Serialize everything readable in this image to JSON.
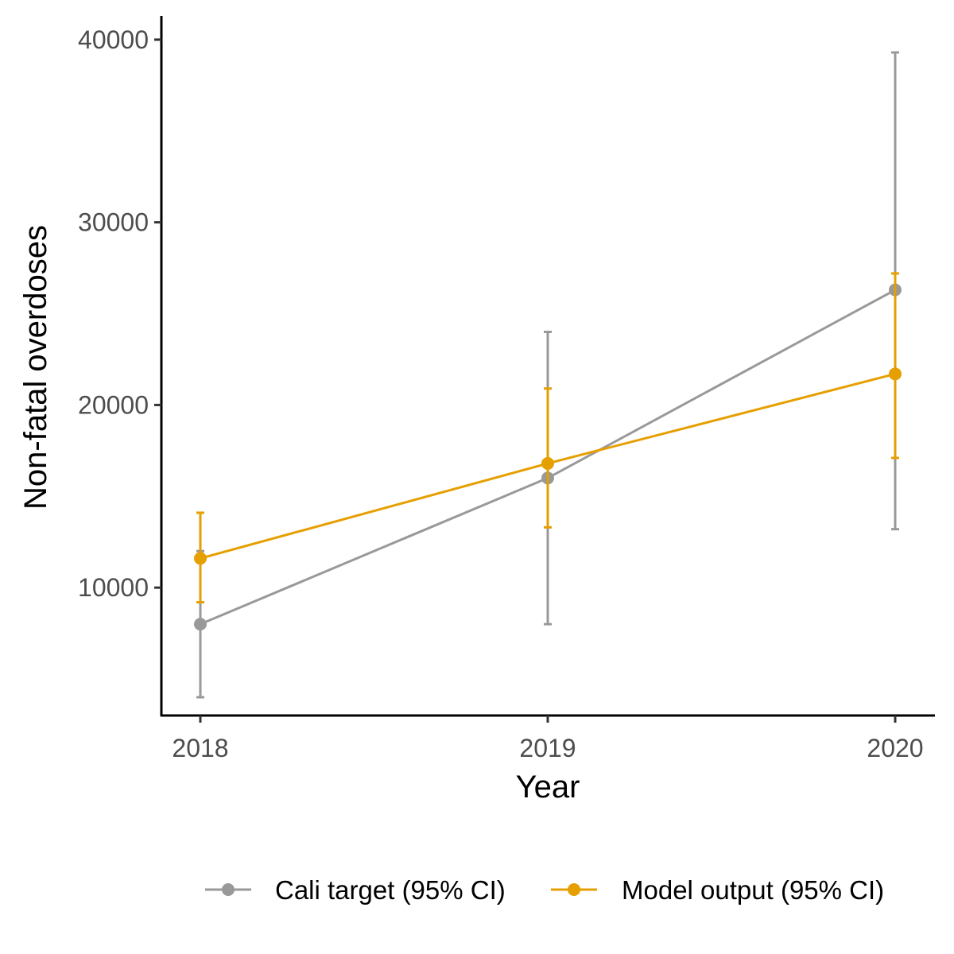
{
  "chart_data": {
    "type": "line",
    "title": "",
    "xlabel": "Year",
    "ylabel": "Non-fatal overdoses",
    "x": [
      2018,
      2019,
      2020
    ],
    "x_tick_labels": [
      "2018",
      "2019",
      "2020"
    ],
    "y_ticks": [
      10000,
      20000,
      30000,
      40000
    ],
    "y_tick_labels": [
      "10000",
      "20000",
      "30000",
      "40000"
    ],
    "ylim": [
      3000,
      41300
    ],
    "grid": false,
    "legend_position": "bottom-right",
    "series": [
      {
        "name": "Cali target (95% CI)",
        "color": "#999999",
        "values": [
          8000,
          16000,
          26300
        ],
        "lower": [
          4000,
          8000,
          13200
        ],
        "upper": [
          12000,
          24000,
          39300
        ]
      },
      {
        "name": "Model output (95% CI)",
        "color": "#E69F00",
        "values": [
          11600,
          16800,
          21700
        ],
        "lower": [
          9200,
          13300,
          17100
        ],
        "upper": [
          14100,
          20900,
          27200
        ]
      }
    ]
  }
}
